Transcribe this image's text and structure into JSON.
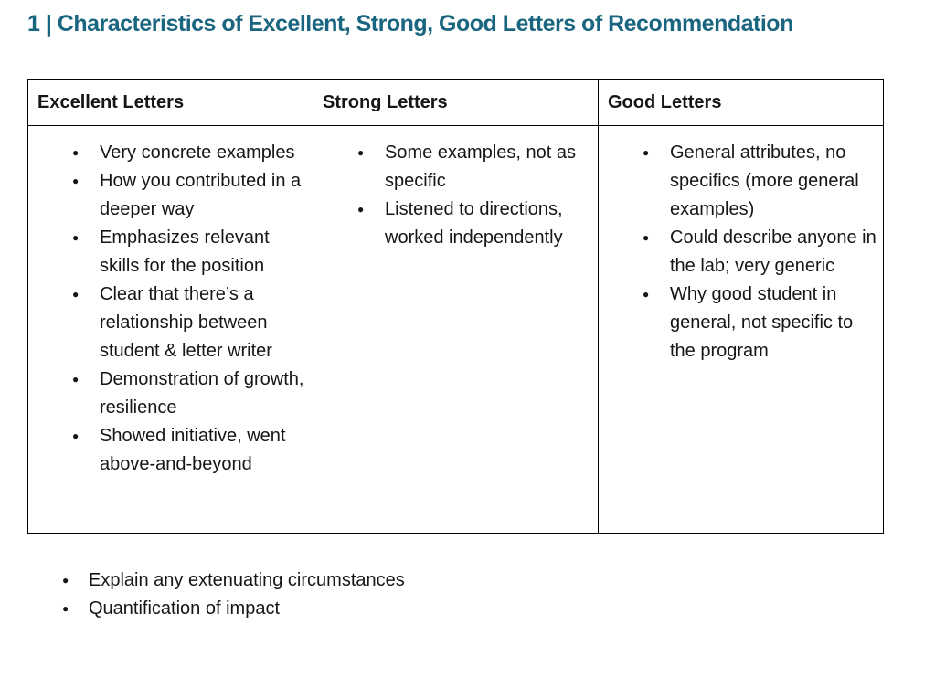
{
  "page_title": "1 | Characteristics of Excellent, Strong, Good Letters of Recommendation",
  "colors": {
    "title": "#1A657F",
    "text": "#161616",
    "border": "#000000",
    "background": "#FFFFFF"
  },
  "table": {
    "columns": [
      {
        "header": "Excellent Letters",
        "items": [
          "Very concrete examples",
          "How you contributed in a deeper way",
          "Emphasizes relevant skills for the position",
          "Clear that there’s a relationship between student & letter writer",
          "Demonstration of growth, resilience",
          "Showed initiative, went above-and-beyond"
        ]
      },
      {
        "header": "Strong Letters",
        "items": [
          "Some examples, not as specific",
          "Listened to directions, worked independently"
        ]
      },
      {
        "header": "Good Letters",
        "items": [
          "General attributes, no specifics (more general examples)",
          "Could describe anyone in the lab; very generic",
          "Why good student in general, not specific to the program"
        ]
      }
    ]
  },
  "footer_bullets": [
    "Explain any extenuating circumstances",
    "Quantification of impact"
  ]
}
